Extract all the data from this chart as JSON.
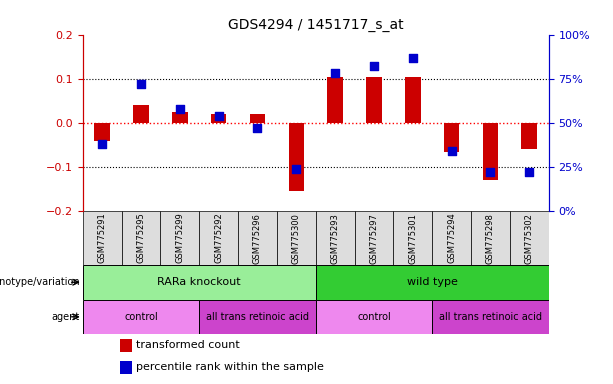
{
  "title": "GDS4294 / 1451717_s_at",
  "samples": [
    "GSM775291",
    "GSM775295",
    "GSM775299",
    "GSM775292",
    "GSM775296",
    "GSM775300",
    "GSM775293",
    "GSM775297",
    "GSM775301",
    "GSM775294",
    "GSM775298",
    "GSM775302"
  ],
  "transformed_count": [
    -0.04,
    0.04,
    0.025,
    0.02,
    0.02,
    -0.155,
    0.103,
    0.105,
    0.105,
    -0.065,
    -0.13,
    -0.06
  ],
  "percentile_rank": [
    38,
    72,
    58,
    54,
    47,
    24,
    78,
    82,
    87,
    34,
    22,
    22
  ],
  "ylim_left": [
    -0.2,
    0.2
  ],
  "ylim_right": [
    0,
    100
  ],
  "yticks_left": [
    -0.2,
    -0.1,
    0.0,
    0.1,
    0.2
  ],
  "yticks_right": [
    0,
    25,
    50,
    75,
    100
  ],
  "bar_color": "#cc0000",
  "dot_color": "#0000cc",
  "genotype_groups": [
    {
      "label": "RARa knockout",
      "start": 0,
      "end": 6,
      "color": "#99ee99"
    },
    {
      "label": "wild type",
      "start": 6,
      "end": 12,
      "color": "#33cc33"
    }
  ],
  "agent_groups": [
    {
      "label": "control",
      "start": 0,
      "end": 3,
      "color": "#ee88ee"
    },
    {
      "label": "all trans retinoic acid",
      "start": 3,
      "end": 6,
      "color": "#cc44cc"
    },
    {
      "label": "control",
      "start": 6,
      "end": 9,
      "color": "#ee88ee"
    },
    {
      "label": "all trans retinoic acid",
      "start": 9,
      "end": 12,
      "color": "#cc44cc"
    }
  ],
  "legend_items": [
    {
      "label": "transformed count",
      "color": "#cc0000"
    },
    {
      "label": "percentile rank within the sample",
      "color": "#0000cc"
    }
  ],
  "left_tick_color": "#cc0000",
  "right_tick_color": "#0000cc",
  "bar_width": 0.4,
  "dot_size": 30
}
